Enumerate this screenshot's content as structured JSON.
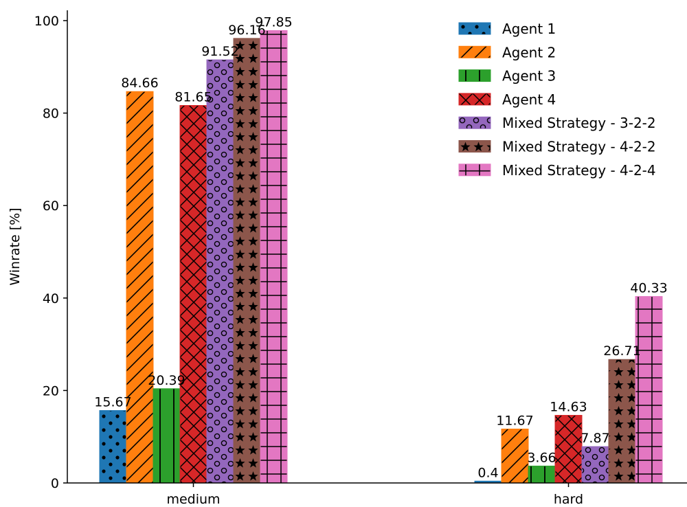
{
  "chart_data": {
    "type": "bar",
    "categories": [
      "medium",
      "hard"
    ],
    "ylabel": "Winrate [%]",
    "xlabel": "",
    "ylim": [
      0,
      100
    ],
    "yticks": [
      0,
      20,
      40,
      60,
      80,
      100
    ],
    "grid": false,
    "legend_position": "top-right",
    "series": [
      {
        "name": "Agent 1",
        "values": [
          15.67,
          0.4
        ],
        "labels": [
          "15.67",
          "0.4"
        ],
        "color": "#1f77b4",
        "hatch": "dots"
      },
      {
        "name": "Agent 2",
        "values": [
          84.66,
          11.67
        ],
        "labels": [
          "84.66",
          "11.67"
        ],
        "color": "#ff7f0e",
        "hatch": "diagonal"
      },
      {
        "name": "Agent 3",
        "values": [
          20.39,
          3.66
        ],
        "labels": [
          "20.39",
          "3.66"
        ],
        "color": "#2ca02c",
        "hatch": "vertical"
      },
      {
        "name": "Agent 4",
        "values": [
          81.65,
          14.63
        ],
        "labels": [
          "81.65",
          "14.63"
        ],
        "color": "#d62728",
        "hatch": "cross"
      },
      {
        "name": "Mixed Strategy - 3-2-2",
        "values": [
          91.52,
          7.87
        ],
        "labels": [
          "91.52",
          "7.87"
        ],
        "color": "#9467bd",
        "hatch": "circles"
      },
      {
        "name": "Mixed Strategy - 4-2-2",
        "values": [
          96.16,
          26.71
        ],
        "labels": [
          "96.16",
          "26.71"
        ],
        "color": "#8c564b",
        "hatch": "stars"
      },
      {
        "name": "Mixed Strategy - 4-2-4",
        "values": [
          97.85,
          40.33
        ],
        "labels": [
          "97.85",
          "40.33"
        ],
        "color": "#e377c2",
        "hatch": "grid"
      }
    ]
  }
}
